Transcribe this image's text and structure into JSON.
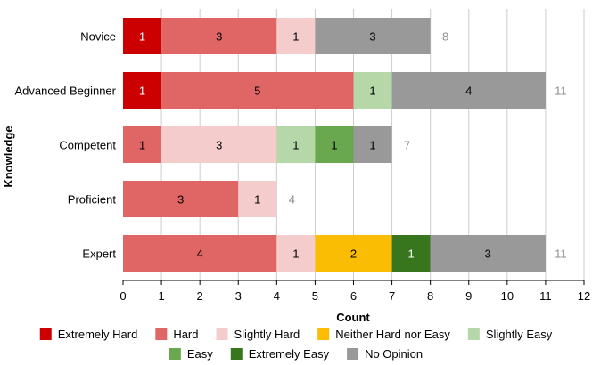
{
  "chart_data": {
    "type": "bar",
    "orientation": "horizontal",
    "stacked": true,
    "xlabel": "Count",
    "ylabel": "Knowledge",
    "xlim": [
      0,
      12
    ],
    "xticks": [
      0,
      1,
      2,
      3,
      4,
      5,
      6,
      7,
      8,
      9,
      10,
      11,
      12
    ],
    "grid": "vertical",
    "legend_position": "bottom",
    "categories": [
      "Novice",
      "Advanced Beginner",
      "Competent",
      "Proficient",
      "Expert"
    ],
    "totals": [
      8,
      11,
      7,
      4,
      11
    ],
    "series": [
      {
        "name": "Extremely Hard",
        "color": "#cc0000",
        "label_color": "#ffffff",
        "values": [
          1,
          1,
          0,
          0,
          0
        ]
      },
      {
        "name": "Hard",
        "color": "#e06666",
        "label_color": "#000000",
        "values": [
          3,
          5,
          1,
          3,
          4
        ]
      },
      {
        "name": "Slightly Hard",
        "color": "#f4cccc",
        "label_color": "#000000",
        "values": [
          1,
          0,
          3,
          1,
          1
        ]
      },
      {
        "name": "Neither Hard nor Easy",
        "color": "#fbbc04",
        "label_color": "#000000",
        "values": [
          0,
          0,
          0,
          0,
          2
        ]
      },
      {
        "name": "Slightly Easy",
        "color": "#b6d7a8",
        "label_color": "#000000",
        "values": [
          0,
          1,
          1,
          0,
          0
        ]
      },
      {
        "name": "Easy",
        "color": "#6aa84f",
        "label_color": "#000000",
        "values": [
          0,
          0,
          1,
          0,
          0
        ]
      },
      {
        "name": "Extremely Easy",
        "color": "#38761d",
        "label_color": "#ffffff",
        "values": [
          0,
          0,
          0,
          0,
          1
        ]
      },
      {
        "name": "No Opinion",
        "color": "#999999",
        "label_color": "#000000",
        "values": [
          3,
          4,
          1,
          0,
          3
        ]
      }
    ]
  }
}
